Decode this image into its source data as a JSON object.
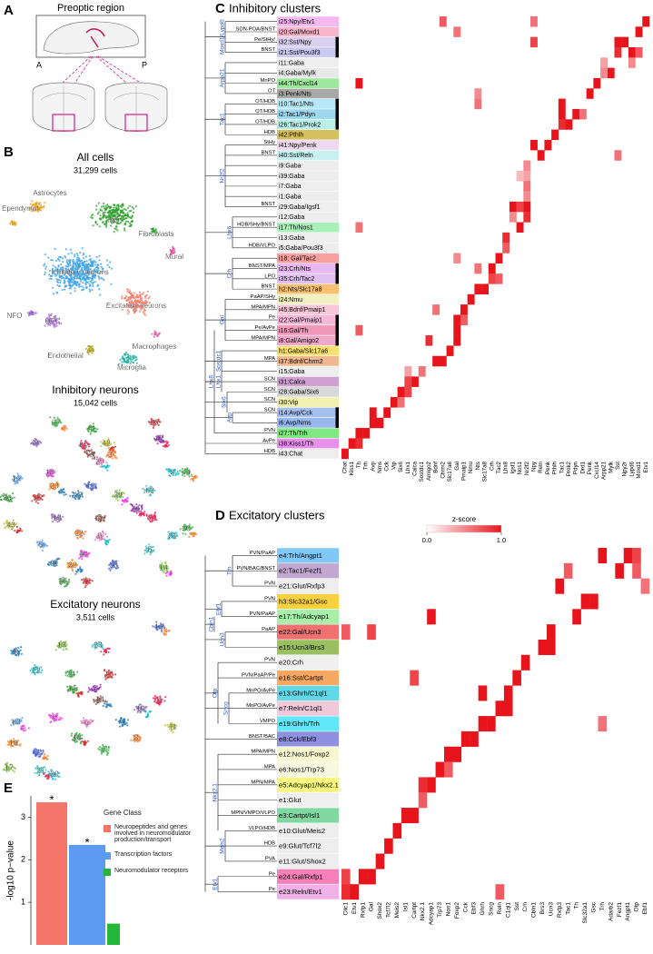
{
  "panel_a": {
    "letter": "A",
    "title": "Preoptic region",
    "anterior": "A",
    "posterior": "P"
  },
  "panel_b": {
    "letter": "B",
    "plots": [
      {
        "title": "All cells",
        "count": "31,299 cells",
        "labels": [
          "Astrocytes",
          "Ependymal",
          "MO",
          "Fibroblasts",
          "Mural",
          "Inhibitory neurons",
          "Excitatory neurons",
          "NFO",
          "OPC",
          "Macrophages",
          "Endothelial",
          "Microglia"
        ]
      },
      {
        "title": "Inhibitory neurons",
        "count": "15,042 cells",
        "labels": [
          "37",
          "4",
          "26",
          "10",
          "8",
          "h1",
          "42",
          "2",
          "1",
          "29",
          "16",
          "18",
          "23",
          "12",
          "45",
          "39",
          "h2",
          "3",
          "44",
          "36",
          "17",
          "11",
          "13",
          "41",
          "43",
          "7",
          "22",
          "9",
          "5",
          "40",
          "32",
          "20",
          "21",
          "14",
          "6",
          "31",
          "30",
          "25",
          "27"
        ]
      },
      {
        "title": "Excitatory neurons",
        "count": "3,511 cells",
        "labels": [
          "16",
          "8",
          "13",
          "23",
          "22",
          "24",
          "15",
          "12",
          "5",
          "10",
          "9",
          "11",
          "14",
          "3",
          "6",
          "h3",
          "2",
          "19",
          "4",
          "1",
          "17",
          "21",
          "20",
          "7",
          "18"
        ]
      }
    ]
  },
  "panel_c": {
    "letter": "C",
    "title": "Inhibitory clusters",
    "rows": [
      {
        "label": "i25:Npy/Etv1",
        "color": "#f5b8f0",
        "region": null
      },
      {
        "label": "i20:Gal/Moxd1",
        "color": "#f7b6cc",
        "region": "SDN-POA/BNST"
      },
      {
        "label": "i32:Sst/Npy",
        "color": "#d9d0f0",
        "region": "Pe/StHy/"
      },
      {
        "label": "i21:Sst/Pou3f3",
        "color": "#c9c9f2",
        "region": "BNST"
      },
      {
        "label": "i11:Gaba",
        "color": "#eeeeee",
        "region": null
      },
      {
        "label": "i4:Gaba/Mylk",
        "color": "#e8e8e8",
        "region": null
      },
      {
        "label": "i44:Th/Cxcl14",
        "color": "#9ee89e",
        "region": "MnPO"
      },
      {
        "label": "i3:Penk/Nts",
        "color": "#a8a8a8",
        "region": "OT"
      },
      {
        "label": "i10:Tac1/Nts",
        "color": "#b8e8f8",
        "region": "OT/HDB"
      },
      {
        "label": "i2:Tac1/Pdyn",
        "color": "#9ed8f0",
        "region": "OT/HDB"
      },
      {
        "label": "i26:Tac1/Prok2",
        "color": "#b8f0e8",
        "region": "OT/HDB"
      },
      {
        "label": "i42:Pthlh",
        "color": "#d4c060",
        "region": "HDB"
      },
      {
        "label": "i41:Npy/Penk",
        "color": "#f0d8f0",
        "region": "StHy"
      },
      {
        "label": "i40:Sst/Reln",
        "color": "#c8f0f0",
        "region": "BNST"
      },
      {
        "label": "i9:Gaba",
        "color": "#eeeeee",
        "region": null
      },
      {
        "label": "i39:Gaba",
        "color": "#eeeeee",
        "region": null
      },
      {
        "label": "i7:Gaba",
        "color": "#eeeeee",
        "region": null
      },
      {
        "label": "i1:Gaba",
        "color": "#eeeeee",
        "region": null
      },
      {
        "label": "i29:Gaba/Igsf1",
        "color": "#eeeeee",
        "region": "BNST"
      },
      {
        "label": "i12:Gaba",
        "color": "#eeeeee",
        "region": null
      },
      {
        "label": "i17:Th/Nos1",
        "color": "#a8f0b8",
        "region": "HDB/SHy/BNST"
      },
      {
        "label": "i13:Gaba",
        "color": "#eeeeee",
        "region": null
      },
      {
        "label": "i5:Gaba/Pou3f3",
        "color": "#eeeeee",
        "region": "HDB/VLPO"
      },
      {
        "label": "i18: Gal/Tac2",
        "color": "#f8a0a0",
        "region": null
      },
      {
        "label": "i23:Crh/Nts",
        "color": "#e8b8f0",
        "region": "BNST/MPA"
      },
      {
        "label": "i35:Crh/Tac2",
        "color": "#e0c0f0",
        "region": "LPO"
      },
      {
        "label": "h2:Nts/Slc17a8",
        "color": "#f8c070",
        "region": "BNST"
      },
      {
        "label": "i24:Nmu",
        "color": "#f0f0c0",
        "region": "PaAP/SHy"
      },
      {
        "label": "i45:Bdnf/Pmaip1",
        "color": "#f8c8d8",
        "region": "MPA/MPN"
      },
      {
        "label": "i22:Gal/Pmaip1",
        "color": "#f8b8d8",
        "region": "Pe"
      },
      {
        "label": "i16:Gal/Th",
        "color": "#f098b8",
        "region": "Pe/AvPe"
      },
      {
        "label": "i8:Gal/Amigo2",
        "color": "#f0a8c8",
        "region": "MPA/MPN"
      },
      {
        "label": "h1:Gaba/Slc17a6",
        "color": "#f8e070",
        "region": null
      },
      {
        "label": "i37:Bdnf/Chrm2",
        "color": "#f0b890",
        "region": "MPA"
      },
      {
        "label": "i15:Gaba",
        "color": "#eeeeee",
        "region": null
      },
      {
        "label": "i31:Calca",
        "color": "#d0a0d0",
        "region": "SCN"
      },
      {
        "label": "i28:Gaba/Six6",
        "color": "#d8d8d8",
        "region": "SCN"
      },
      {
        "label": "i30:Vip",
        "color": "#f0f0b0",
        "region": "SCN"
      },
      {
        "label": "i14:Avp/Cck",
        "color": "#a8c0f0",
        "region": "SCN"
      },
      {
        "label": "i6:Avp/Nms",
        "color": "#98b8f0",
        "region": null
      },
      {
        "label": "i27:Th/Trh",
        "color": "#80e880",
        "region": "PVN"
      },
      {
        "label": "i38:Kiss1/Th",
        "color": "#e890f0",
        "region": "AvPe"
      },
      {
        "label": "i43:Chat",
        "color": "#eeeeee",
        "region": "HDB"
      }
    ],
    "tree_labels": [
      "Moxd1/Lypd6",
      "Arpp21",
      "Tac1",
      "Nr2f2",
      "Lhx6",
      "Crh",
      "Gal",
      "Sostdc1",
      "Lhx8",
      "Lhx1",
      "Six6",
      "Avp"
    ],
    "columns": [
      "Chat",
      "Kiss1",
      "Th",
      "Trh",
      "Avp",
      "Nms",
      "Cck",
      "Vip",
      "Six6",
      "Lhx1",
      "Calca",
      "Sostdc1",
      "Amigo2",
      "Bdnf",
      "Chrm2",
      "Slc17a6",
      "Gal",
      "Pmaip1",
      "Nmu",
      "Nts",
      "Slc17a8",
      "Crh",
      "Tac2",
      "Lhx8",
      "Igsf1",
      "Nos1",
      "Nr2f2",
      "Npy",
      "Reln",
      "Penk",
      "Pthlh",
      "Tac1",
      "Prok2",
      "Pdyn",
      "Drd1",
      "Penk",
      "Cxcl14",
      "Arpp21",
      "Mylk",
      "Sst",
      "Npy2r",
      "Lypd6",
      "Moxd1",
      "Etv1"
    ],
    "cells": [
      [
        0,
        43,
        1
      ],
      [
        0,
        27,
        0.6
      ],
      [
        0,
        14,
        0.7
      ],
      [
        1,
        42,
        1
      ],
      [
        1,
        16,
        0.6
      ],
      [
        2,
        39,
        1
      ],
      [
        2,
        40,
        1
      ],
      [
        2,
        27,
        0.8
      ],
      [
        3,
        39,
        0.9
      ],
      [
        3,
        41,
        1
      ],
      [
        3,
        42,
        0.7
      ],
      [
        4,
        41,
        0.5
      ],
      [
        4,
        37,
        0.4
      ],
      [
        5,
        38,
        1
      ],
      [
        5,
        37,
        0.5
      ],
      [
        6,
        36,
        1
      ],
      [
        6,
        2,
        1
      ],
      [
        7,
        35,
        1
      ],
      [
        7,
        19,
        0.5
      ],
      [
        8,
        31,
        1
      ],
      [
        8,
        19,
        0.6
      ],
      [
        9,
        31,
        1
      ],
      [
        9,
        33,
        1
      ],
      [
        9,
        34,
        0.6
      ],
      [
        10,
        31,
        0.9
      ],
      [
        10,
        32,
        1
      ],
      [
        11,
        30,
        1
      ],
      [
        12,
        27,
        1
      ],
      [
        12,
        29,
        1
      ],
      [
        13,
        28,
        1
      ],
      [
        13,
        39,
        0.6
      ],
      [
        14,
        26,
        0.5
      ],
      [
        15,
        26,
        0.4
      ],
      [
        15,
        25,
        0.3
      ],
      [
        16,
        26,
        0.6
      ],
      [
        17,
        26,
        0.5
      ],
      [
        18,
        24,
        1
      ],
      [
        18,
        26,
        1
      ],
      [
        18,
        25,
        0.8
      ],
      [
        19,
        24,
        0.5
      ],
      [
        19,
        26,
        0.9
      ],
      [
        20,
        25,
        1
      ],
      [
        20,
        2,
        0.6
      ],
      [
        21,
        23,
        0.9
      ],
      [
        22,
        23,
        0.7
      ],
      [
        23,
        22,
        1
      ],
      [
        23,
        16,
        0.5
      ],
      [
        24,
        21,
        1
      ],
      [
        24,
        19,
        0.6
      ],
      [
        25,
        21,
        0.8
      ],
      [
        25,
        22,
        0.7
      ],
      [
        26,
        19,
        1
      ],
      [
        26,
        20,
        1
      ],
      [
        27,
        18,
        1
      ],
      [
        28,
        17,
        1
      ],
      [
        28,
        13,
        0.6
      ],
      [
        29,
        16,
        1
      ],
      [
        29,
        17,
        0.7
      ],
      [
        30,
        16,
        1
      ],
      [
        30,
        2,
        0.7
      ],
      [
        31,
        16,
        1
      ],
      [
        31,
        12,
        0.9
      ],
      [
        32,
        15,
        1
      ],
      [
        33,
        13,
        1
      ],
      [
        33,
        14,
        1
      ],
      [
        34,
        11,
        0.6
      ],
      [
        34,
        9,
        0.4
      ],
      [
        35,
        10,
        1
      ],
      [
        35,
        9,
        0.8
      ],
      [
        36,
        8,
        1
      ],
      [
        36,
        9,
        0.8
      ],
      [
        37,
        7,
        1
      ],
      [
        37,
        8,
        0.6
      ],
      [
        38,
        4,
        1
      ],
      [
        38,
        6,
        1
      ],
      [
        39,
        4,
        1
      ],
      [
        39,
        5,
        1
      ],
      [
        40,
        2,
        1
      ],
      [
        40,
        3,
        1
      ],
      [
        41,
        1,
        1
      ],
      [
        41,
        2,
        0.9
      ],
      [
        42,
        0,
        1
      ]
    ]
  },
  "panel_d": {
    "letter": "D",
    "title": "Excitatory clusters",
    "colorbar": {
      "title": "z-score",
      "zlim": [
        0,
        1
      ],
      "ticks": [
        {
          "value": 0,
          "label": "0.0"
        },
        {
          "value": 1,
          "label": "1.0"
        }
      ]
    },
    "rows": [
      {
        "label": "e4:Trh/Angpt1",
        "color": "#80c8f8",
        "region": "PVN/PaAP"
      },
      {
        "label": "e2:Tac1/Fezf1",
        "color": "#c0a8d0",
        "region": "PVN/BAC/BNST"
      },
      {
        "label": "e21:Glut/Rxfp3",
        "color": "#eeeeee",
        "region": "PVN"
      },
      {
        "label": "h3:Slc32a1/Gsc",
        "color": "#f8d040",
        "region": "PVN"
      },
      {
        "label": "e17:Th/Adcyap1",
        "color": "#a8f0a8",
        "region": "PVN/PaAP"
      },
      {
        "label": "e22:Gal/Ucn3",
        "color": "#f07070",
        "region": "PaAP"
      },
      {
        "label": "e15:Ucn3/Brs3",
        "color": "#98c060",
        "region": null
      },
      {
        "label": "e20:Crh",
        "color": "#f0f0f0",
        "region": "PVN"
      },
      {
        "label": "e16:Sst/Cartpt",
        "color": "#f8a860",
        "region": "PVN/PaAP/Pe"
      },
      {
        "label": "e13:Ghrh/C1ql1",
        "color": "#60d8e8",
        "region": "MnPO/AvPe"
      },
      {
        "label": "e7:Reln/C1ql1",
        "color": "#f0c8d8",
        "region": "MnPO/AvPe"
      },
      {
        "label": "e19:Ghrh/Trh",
        "color": "#60e8f8",
        "region": "VMPO"
      },
      {
        "label": "e8:Cck/Ebf3",
        "color": "#9090e0",
        "region": "BNST/BAC"
      },
      {
        "label": "e12:Nos1/Foxp2",
        "color": "#f8f8d0",
        "region": "MPA/MPN"
      },
      {
        "label": "e6:Nos1/Trp73",
        "color": "#f8f8e0",
        "region": "MPA"
      },
      {
        "label": "e5:Adcyap1/Nkx2.1",
        "color": "#f8f880",
        "region": "MPN/MPA"
      },
      {
        "label": "e1:Glut",
        "color": "#f0f0f0",
        "region": null
      },
      {
        "label": "e3:Cartpt/Isl1",
        "color": "#80d8a0",
        "region": "MPN/VMPO/VLPO"
      },
      {
        "label": "e10:Glut/Meis2",
        "color": "#eeeeee",
        "region": "VLPO/HDB"
      },
      {
        "label": "e9:Glut/Tcf7l2",
        "color": "#eeeeee",
        "region": "HDB"
      },
      {
        "label": "e11:Glut/Shox2",
        "color": "#eeeeee",
        "region": "PVA"
      },
      {
        "label": "e24:Gal/Rxfp1",
        "color": "#f880b8",
        "region": "Pe"
      },
      {
        "label": "e23:Reln/Etv1",
        "color": "#f0b0e8",
        "region": "Pe"
      }
    ],
    "tree_labels": [
      "Trh",
      "Ebf1",
      "Cbln1",
      "Ucn3",
      "Otp",
      "Sncg",
      "Nkx2.1",
      "Meis2",
      "Etv1"
    ],
    "columns": [
      "Clic1",
      "Etv1",
      "Rxfp1",
      "Gal",
      "Shox2",
      "Tcf7l2",
      "Meis2",
      "Isl1",
      "Cartpt",
      "Nkx2.1",
      "Adcyap1",
      "Trp73",
      "Nos1",
      "Foxp2",
      "Cck",
      "Ebf3",
      "Ghrh",
      "Sncg",
      "Reln",
      "C1ql1",
      "Sst",
      "Crh",
      "Cbln1",
      "Brs3",
      "Ucn3",
      "Rxfp3",
      "Tac1",
      "Th",
      "Slc32a1",
      "Gsc",
      "Trh",
      "Adarb2",
      "Fezf1",
      "Angpt1",
      "Otp",
      "Ebf1"
    ],
    "cells": [
      [
        0,
        30,
        1
      ],
      [
        0,
        33,
        1
      ],
      [
        0,
        34,
        0.8
      ],
      [
        1,
        32,
        1
      ],
      [
        1,
        26,
        0.7
      ],
      [
        1,
        34,
        0.7
      ],
      [
        2,
        25,
        1
      ],
      [
        2,
        35,
        0.6
      ],
      [
        3,
        28,
        1
      ],
      [
        3,
        29,
        1
      ],
      [
        4,
        27,
        1
      ],
      [
        4,
        10,
        1
      ],
      [
        5,
        24,
        1
      ],
      [
        5,
        3,
        0.8
      ],
      [
        5,
        0,
        0.7
      ],
      [
        6,
        23,
        1
      ],
      [
        6,
        24,
        1
      ],
      [
        7,
        21,
        1
      ],
      [
        8,
        20,
        1
      ],
      [
        8,
        8,
        0.8
      ],
      [
        9,
        16,
        1
      ],
      [
        9,
        19,
        1
      ],
      [
        10,
        18,
        1
      ],
      [
        10,
        19,
        1
      ],
      [
        11,
        16,
        1
      ],
      [
        11,
        17,
        1
      ],
      [
        11,
        30,
        0.6
      ],
      [
        12,
        14,
        1
      ],
      [
        12,
        15,
        1
      ],
      [
        13,
        12,
        1
      ],
      [
        13,
        13,
        1
      ],
      [
        14,
        11,
        1
      ],
      [
        14,
        12,
        0.7
      ],
      [
        15,
        10,
        1
      ],
      [
        15,
        9,
        0.9
      ],
      [
        16,
        9,
        0.7
      ],
      [
        17,
        7,
        1
      ],
      [
        17,
        8,
        1
      ],
      [
        18,
        6,
        1
      ],
      [
        19,
        5,
        1
      ],
      [
        20,
        4,
        1
      ],
      [
        21,
        2,
        1
      ],
      [
        21,
        3,
        1
      ],
      [
        21,
        0,
        0.8
      ],
      [
        22,
        1,
        1
      ],
      [
        22,
        0,
        0.9
      ],
      [
        22,
        18,
        0.7
      ]
    ]
  },
  "panel_e": {
    "letter": "E",
    "type": "bar",
    "ylabel": "-log10 p−value",
    "ylim": [
      0,
      3.5
    ],
    "yticks": [
      1,
      2,
      3
    ],
    "legend_title": "Gene Class",
    "series": [
      {
        "name": "Neuropeptides and genes involved in neuromodulator production/transport",
        "color": "#f4756a",
        "values": [
          3.35
        ],
        "marker": "*"
      },
      {
        "name": "Transcription factors",
        "color": "#5b9cf2",
        "values": [
          2.35
        ],
        "marker": "*"
      },
      {
        "name": "Neuromodulator receptors",
        "color": "#23b83a",
        "values": [
          0.5
        ]
      }
    ]
  }
}
